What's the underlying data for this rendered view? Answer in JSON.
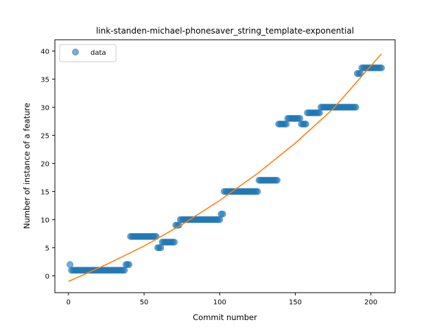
{
  "chart_data": {
    "type": "scatter",
    "title": "link-standen-michael-phonesaver_string_template-exponential",
    "xlabel": "Commit number",
    "ylabel": "Number of instance of a feature",
    "xlim": [
      -9,
      216
    ],
    "ylim": [
      -3,
      42
    ],
    "x_ticks": [
      0,
      50,
      100,
      150,
      200
    ],
    "y_ticks": [
      0,
      5,
      10,
      15,
      20,
      25,
      30,
      35,
      40
    ],
    "legend": {
      "position": "top-left",
      "entries": [
        "data"
      ]
    },
    "grid": false,
    "colors": {
      "data": "#1f77b4",
      "fit": "#ff7f0e"
    },
    "series": [
      {
        "name": "data",
        "kind": "scatter",
        "segments": [
          {
            "x_start": 1,
            "x_end": 1,
            "y": 2
          },
          {
            "x_start": 2,
            "x_end": 37,
            "y": 1
          },
          {
            "x_start": 38,
            "x_end": 40,
            "y": 2
          },
          {
            "x_start": 41,
            "x_end": 58,
            "y": 7
          },
          {
            "x_start": 59,
            "x_end": 61,
            "y": 5
          },
          {
            "x_start": 62,
            "x_end": 70,
            "y": 6
          },
          {
            "x_start": 71,
            "x_end": 73,
            "y": 9
          },
          {
            "x_start": 74,
            "x_end": 100,
            "y": 10
          },
          {
            "x_start": 101,
            "x_end": 102,
            "y": 11
          },
          {
            "x_start": 103,
            "x_end": 125,
            "y": 15
          },
          {
            "x_start": 126,
            "x_end": 138,
            "y": 17
          },
          {
            "x_start": 139,
            "x_end": 144,
            "y": 27
          },
          {
            "x_start": 145,
            "x_end": 153,
            "y": 28
          },
          {
            "x_start": 154,
            "x_end": 157,
            "y": 27
          },
          {
            "x_start": 158,
            "x_end": 166,
            "y": 29
          },
          {
            "x_start": 167,
            "x_end": 190,
            "y": 30
          },
          {
            "x_start": 191,
            "x_end": 193,
            "y": 36
          },
          {
            "x_start": 194,
            "x_end": 207,
            "y": 37
          }
        ]
      },
      {
        "name": "fit",
        "kind": "line",
        "x": [
          0,
          25,
          50,
          75,
          100,
          125,
          150,
          175,
          207
        ],
        "y": [
          -1,
          2,
          5.3,
          9.1,
          13.4,
          18.2,
          23.6,
          29.7,
          39.5
        ]
      }
    ]
  }
}
